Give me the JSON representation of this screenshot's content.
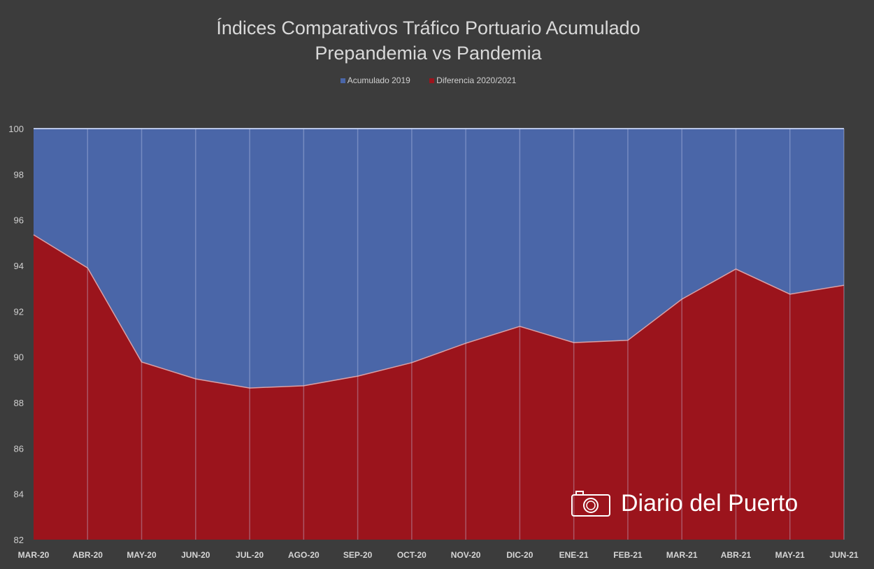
{
  "chart_data": {
    "type": "area",
    "title": "Índices Comparativos Tráfico Portuario Acumulado",
    "subtitle": "Prepandemia vs Pandemia",
    "xlabel": "",
    "ylabel": "",
    "categories": [
      "MAR-20",
      "ABR-20",
      "MAY-20",
      "JUN-20",
      "JUL-20",
      "AGO-20",
      "SEP-20",
      "OCT-20",
      "NOV-20",
      "DIC-20",
      "ENE-21",
      "FEB-21",
      "MAR-21",
      "ABR-21",
      "MAY-21",
      "JUN-21"
    ],
    "series": [
      {
        "name": "Acumulado 2019",
        "color": "#4a66a8",
        "values": [
          100,
          100,
          100,
          100,
          100,
          100,
          100,
          100,
          100,
          100,
          100,
          100,
          100,
          100,
          100,
          100
        ]
      },
      {
        "name": "Diferencia 2020/2021",
        "color": "#9b141c",
        "values": [
          95.35,
          93.9,
          89.78,
          89.04,
          88.64,
          88.74,
          89.16,
          89.75,
          90.6,
          91.34,
          90.63,
          90.73,
          92.53,
          93.85,
          92.75,
          93.14
        ]
      }
    ],
    "ylim": [
      82,
      100
    ],
    "yticks": [
      82,
      84,
      86,
      88,
      90,
      92,
      94,
      96,
      98,
      100
    ],
    "grid": true,
    "legend": "top-center"
  },
  "watermark": {
    "text": "Diario del Puerto"
  }
}
